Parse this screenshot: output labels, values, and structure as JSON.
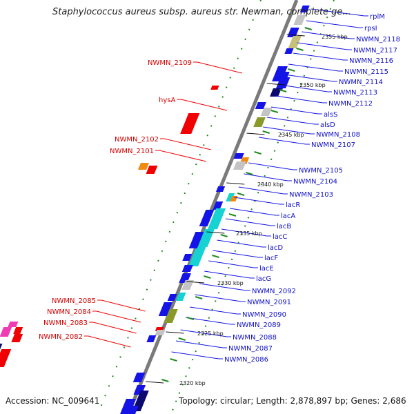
{
  "title": "Staphylococcus aureus subsp. aureus str. Newman, complete ge...",
  "footer": {
    "accession": "Accession: NC_009641",
    "topology": "Topology: circular; Length: 2,878,897 bp; Genes: 2,686"
  },
  "kbp_marks": [
    "2355 kbp",
    "2350 kbp",
    "2345 kbp",
    "2340 kbp",
    "2335 kbp",
    "2330 kbp",
    "2325 kbp",
    "2320 kbp"
  ],
  "right_labels": [
    "rplM",
    "rpsI",
    "NWMN_2118",
    "NWMN_2117",
    "NWMN_2116",
    "NWMN_2115",
    "NWMN_2114",
    "NWMN_2113",
    "NWMN_2112",
    "alsS",
    "alsD",
    "NWMN_2108",
    "NWMN_2107",
    "NWMN_2105",
    "NWMN_2104",
    "NWMN_2103",
    "lacR",
    "lacA",
    "lacB",
    "lacC",
    "lacD",
    "lacF",
    "lacE",
    "lacG",
    "NWMN_2092",
    "NWMN_2091",
    "NWMN_2090",
    "NWMN_2089",
    "NWMN_2088",
    "NWMN_2087",
    "NWMN_2086"
  ],
  "left_labels": [
    "NWMN_2109",
    "hysA",
    "NWMN_2102",
    "NWMN_2101",
    "NWMN_2085",
    "NWMN_2084",
    "NWMN_2083",
    "NWMN_2082"
  ],
  "colors": {
    "forward": "#1414e6",
    "reverse": "#f00000",
    "lac_operon": "#16d2d2",
    "orange": "#f08a10",
    "grey": "#c4c4c4",
    "olive": "#8a9a2a",
    "khaki": "#c6c07a",
    "navy": "#0a0a70",
    "magenta": "#f03cb4",
    "backbone": "#7a7a7a",
    "tick_green": "#1f8a1f"
  }
}
